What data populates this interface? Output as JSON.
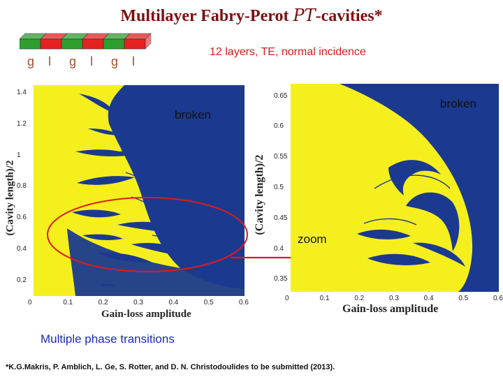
{
  "title": {
    "main": "Multilayer Fabry-Perot ",
    "pt": "PT",
    "suffix": "-cavities*"
  },
  "subtitle": "12 layers, TE, normal incidence",
  "layers": {
    "colors": [
      "#2e9e2e",
      "#e52121",
      "#2e9e2e",
      "#e52121",
      "#2e9e2e",
      "#e52121"
    ],
    "labels": [
      "g",
      "l",
      "g",
      "l",
      "g",
      "l"
    ]
  },
  "colors": {
    "broken_region": "#1b3a8f",
    "exact_region": "#f6ef1e",
    "ellipse": "#e01b1b"
  },
  "chart_data": [
    {
      "type": "heatmap",
      "title": "",
      "xlabel": "Gain-loss amplitude",
      "ylabel": "(Cavity length)/2",
      "xlim": [
        0,
        0.6
      ],
      "ylim": [
        0.1,
        1.45
      ],
      "xticks": [
        "0",
        "0.1",
        "0.2",
        "0.3",
        "0.4",
        "0.5",
        "0.6"
      ],
      "yticks": [
        "0.2",
        "0.4",
        "0.6",
        "0.8",
        "1",
        "1.2",
        "1.4"
      ],
      "annotation": "broken"
    },
    {
      "type": "heatmap",
      "title": "",
      "xlabel": "Gain-loss amplitude",
      "ylabel": "(Cavity length)/2",
      "xlim": [
        0,
        0.6
      ],
      "ylim": [
        0.33,
        0.67
      ],
      "xticks": [
        "0",
        "0.1",
        "0.2",
        "0.3",
        "0.4",
        "0.5",
        "0.6"
      ],
      "yticks": [
        "0.35",
        "0.4",
        "0.45",
        "0.5",
        "0.55",
        "0.6",
        "0.65"
      ],
      "annotation": "broken"
    }
  ],
  "zoom_label": "zoom",
  "footer": {
    "multiple": "Multiple phase transitions",
    "citation": "*K.G.Makris, P. Amblich, L. Ge, S. Rotter, and D. N. Christodoulides to be submitted (2013)."
  }
}
